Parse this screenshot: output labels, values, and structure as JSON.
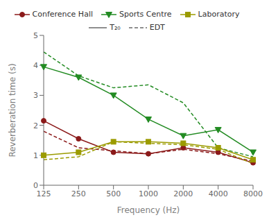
{
  "chart_data": {
    "type": "line",
    "xlabel": "Frequency (Hz)",
    "ylabel": "Reverberation time (s)",
    "categories": [
      "125",
      "250",
      "500",
      "1000",
      "2000",
      "4000",
      "8000"
    ],
    "ylim": [
      0,
      5
    ],
    "yticks": [
      0,
      1,
      2,
      3,
      4,
      5
    ],
    "grid": false,
    "legend": "top",
    "series": [
      {
        "name": "Conference Hall",
        "metric": "T₂₀",
        "color": "#8B1A1A",
        "marker": "circle",
        "line_style": "solid",
        "values": [
          2.15,
          1.55,
          1.1,
          1.05,
          1.25,
          1.1,
          0.75
        ]
      },
      {
        "name": "Conference Hall",
        "metric": "EDT",
        "color": "#8B1A1A",
        "marker": "none",
        "line_style": "dashed",
        "values": [
          1.8,
          1.25,
          1.15,
          1.05,
          1.2,
          1.05,
          0.8
        ]
      },
      {
        "name": "Sports Centre",
        "metric": "T₂₀",
        "color": "#228B22",
        "marker": "triangle-down",
        "line_style": "solid",
        "values": [
          3.95,
          3.6,
          3.0,
          2.2,
          1.65,
          1.85,
          1.1
        ]
      },
      {
        "name": "Sports Centre",
        "metric": "EDT",
        "color": "#228B22",
        "marker": "none",
        "line_style": "dashed",
        "values": [
          4.45,
          3.65,
          3.25,
          3.35,
          2.75,
          1.25,
          0.95
        ]
      },
      {
        "name": "Laboratory",
        "metric": "T₂₀",
        "color": "#9B9B00",
        "marker": "square",
        "line_style": "solid",
        "values": [
          1.0,
          1.1,
          1.45,
          1.45,
          1.4,
          1.25,
          0.85
        ]
      },
      {
        "name": "Laboratory",
        "metric": "EDT",
        "color": "#9B9B00",
        "marker": "none",
        "line_style": "dashed",
        "values": [
          0.85,
          0.95,
          1.45,
          1.4,
          1.35,
          1.2,
          0.72
        ]
      }
    ]
  }
}
